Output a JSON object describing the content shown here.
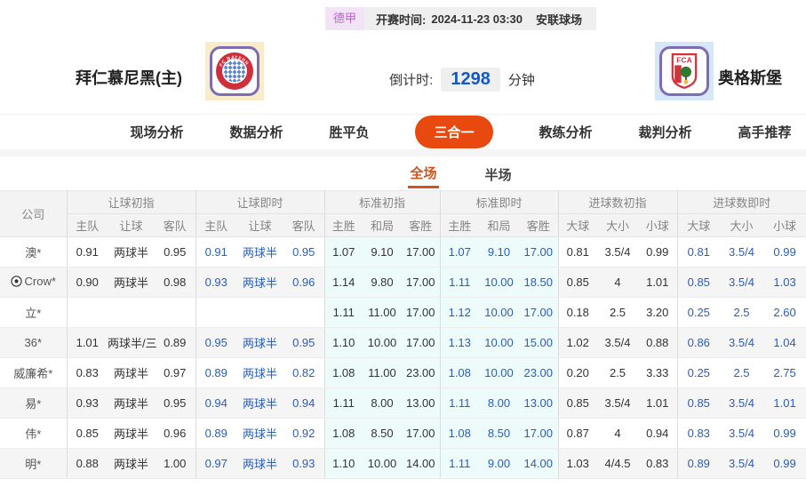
{
  "match_bar": {
    "league": "德甲",
    "kickoff_label": "开赛时间:",
    "kickoff_time": "2024-11-23 03:30",
    "venue": "安联球场"
  },
  "teams": {
    "home": {
      "name": "拜仁慕尼黑(主)",
      "crest_text": "FC BAYERN"
    },
    "away": {
      "name": "奥格斯堡",
      "crest_text": "FCA"
    }
  },
  "countdown": {
    "label": "倒计时:",
    "value": "1298",
    "unit": "分钟"
  },
  "tabs": [
    {
      "label": "现场分析",
      "active": false
    },
    {
      "label": "数据分析",
      "active": false
    },
    {
      "label": "胜平负",
      "active": false
    },
    {
      "label": "三合一",
      "active": true
    },
    {
      "label": "教练分析",
      "active": false
    },
    {
      "label": "裁判分析",
      "active": false
    },
    {
      "label": "高手推荐",
      "active": false
    }
  ],
  "subtabs": [
    {
      "label": "全场",
      "active": true
    },
    {
      "label": "半场",
      "active": false
    }
  ],
  "table": {
    "company_header": "公司",
    "groups": [
      {
        "label": "让球初指",
        "cols": [
          "主队",
          "让球",
          "客队"
        ]
      },
      {
        "label": "让球即时",
        "cols": [
          "主队",
          "让球",
          "客队"
        ]
      },
      {
        "label": "标准初指",
        "cols": [
          "主胜",
          "和局",
          "客胜"
        ]
      },
      {
        "label": "标准即时",
        "cols": [
          "主胜",
          "和局",
          "客胜"
        ]
      },
      {
        "label": "进球数初指",
        "cols": [
          "大球",
          "大小",
          "小球"
        ]
      },
      {
        "label": "进球数即时",
        "cols": [
          "大球",
          "大小",
          "小球"
        ]
      }
    ],
    "rows": [
      {
        "company": "澳*",
        "has_icon": false,
        "cells": [
          "0.91",
          "两球半",
          "0.95",
          "0.91",
          "两球半",
          "0.95",
          "1.07",
          "9.10",
          "17.00",
          "1.07",
          "9.10",
          "17.00",
          "0.81",
          "3.5/4",
          "0.99",
          "0.81",
          "3.5/4",
          "0.99"
        ]
      },
      {
        "company": "Crow*",
        "has_icon": true,
        "cells": [
          "0.90",
          "两球半",
          "0.98",
          "0.93",
          "两球半",
          "0.96",
          "1.14",
          "9.80",
          "17.00",
          "1.11",
          "10.00",
          "18.50",
          "0.85",
          "4",
          "1.01",
          "0.85",
          "3.5/4",
          "1.03"
        ]
      },
      {
        "company": "立*",
        "has_icon": false,
        "cells": [
          "",
          "",
          "",
          "",
          "",
          "",
          "1.11",
          "11.00",
          "17.00",
          "1.12",
          "10.00",
          "17.00",
          "0.18",
          "2.5",
          "3.20",
          "0.25",
          "2.5",
          "2.60"
        ]
      },
      {
        "company": "36*",
        "has_icon": false,
        "cells": [
          "1.01",
          "两球半/三",
          "0.89",
          "0.95",
          "两球半",
          "0.95",
          "1.10",
          "10.00",
          "17.00",
          "1.13",
          "10.00",
          "15.00",
          "1.02",
          "3.5/4",
          "0.88",
          "0.86",
          "3.5/4",
          "1.04"
        ]
      },
      {
        "company": "威廉希*",
        "has_icon": false,
        "cells": [
          "0.83",
          "两球半",
          "0.97",
          "0.89",
          "两球半",
          "0.82",
          "1.08",
          "11.00",
          "23.00",
          "1.08",
          "10.00",
          "23.00",
          "0.20",
          "2.5",
          "3.33",
          "0.25",
          "2.5",
          "2.75"
        ]
      },
      {
        "company": "易*",
        "has_icon": false,
        "cells": [
          "0.93",
          "两球半",
          "0.95",
          "0.94",
          "两球半",
          "0.94",
          "1.11",
          "8.00",
          "13.00",
          "1.11",
          "8.00",
          "13.00",
          "0.85",
          "3.5/4",
          "1.01",
          "0.85",
          "3.5/4",
          "1.01"
        ]
      },
      {
        "company": "伟*",
        "has_icon": false,
        "cells": [
          "0.85",
          "两球半",
          "0.96",
          "0.89",
          "两球半",
          "0.92",
          "1.08",
          "8.50",
          "17.00",
          "1.08",
          "8.50",
          "17.00",
          "0.87",
          "4",
          "0.94",
          "0.83",
          "3.5/4",
          "0.99"
        ]
      },
      {
        "company": "明*",
        "has_icon": false,
        "cells": [
          "0.88",
          "两球半",
          "1.00",
          "0.97",
          "两球半",
          "0.93",
          "1.10",
          "10.00",
          "14.00",
          "1.11",
          "9.00",
          "14.00",
          "1.03",
          "4/4.5",
          "0.83",
          "0.89",
          "3.5/4",
          "0.99"
        ]
      }
    ]
  },
  "colors": {
    "accent_orange": "#e8490e",
    "subtab_orange": "#d4531c",
    "live_blue": "#2a5dc0",
    "countdown_blue": "#1558c8",
    "cyan_column_bg": "#eefbfb",
    "league_badge_text": "#bb63d6",
    "league_badge_bg": "#f2e3f6"
  }
}
